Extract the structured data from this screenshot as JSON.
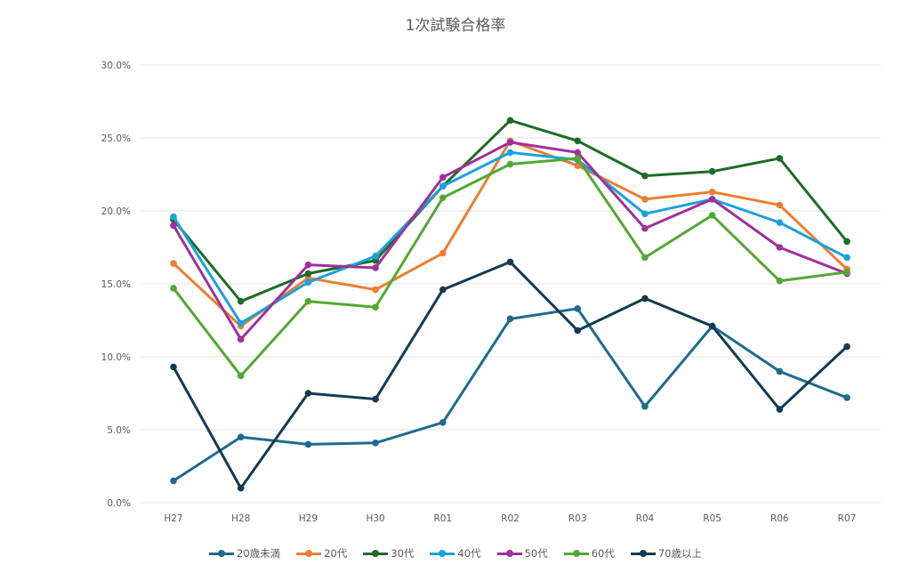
{
  "chart_data": {
    "type": "line",
    "title": "1次試験合格率",
    "xlabel": "",
    "ylabel": "",
    "ylim": [
      0,
      30
    ],
    "yticks": [
      "0.0%",
      "5.0%",
      "10.0%",
      "15.0%",
      "20.0%",
      "25.0%",
      "30.0%"
    ],
    "grid": true,
    "legend": "bottom",
    "categories": [
      "H27",
      "H28",
      "H29",
      "H30",
      "R01",
      "R02",
      "R03",
      "R04",
      "R05",
      "R06",
      "R07"
    ],
    "series": [
      {
        "name": "20歳未満",
        "color": "#1f6b8c",
        "values": [
          1.5,
          4.5,
          4.0,
          4.1,
          5.5,
          12.6,
          13.3,
          6.6,
          12.1,
          9.0,
          7.2
        ]
      },
      {
        "name": "20代",
        "color": "#ed7d31",
        "values": [
          16.4,
          12.1,
          15.4,
          14.6,
          17.1,
          24.8,
          23.1,
          20.8,
          21.3,
          20.4,
          16.0
        ]
      },
      {
        "name": "30代",
        "color": "#1e6b27",
        "values": [
          19.4,
          13.8,
          15.7,
          16.6,
          21.7,
          26.2,
          24.8,
          22.4,
          22.7,
          23.6,
          17.9
        ]
      },
      {
        "name": "40代",
        "color": "#1ba1dc",
        "values": [
          19.6,
          12.3,
          15.1,
          16.9,
          21.7,
          24.0,
          23.5,
          19.8,
          20.8,
          19.2,
          16.8
        ]
      },
      {
        "name": "50代",
        "color": "#a0309a",
        "values": [
          19.0,
          11.2,
          16.3,
          16.1,
          22.3,
          24.7,
          24.0,
          18.8,
          20.8,
          17.5,
          15.7
        ]
      },
      {
        "name": "60代",
        "color": "#52a833",
        "values": [
          14.7,
          8.7,
          13.8,
          13.4,
          20.9,
          23.2,
          23.6,
          16.8,
          19.7,
          15.2,
          15.8
        ]
      },
      {
        "name": "70歳以上",
        "color": "#123b52",
        "values": [
          9.3,
          1.0,
          7.5,
          7.1,
          14.6,
          16.5,
          11.8,
          14.0,
          12.1,
          6.4,
          10.7
        ]
      }
    ]
  }
}
